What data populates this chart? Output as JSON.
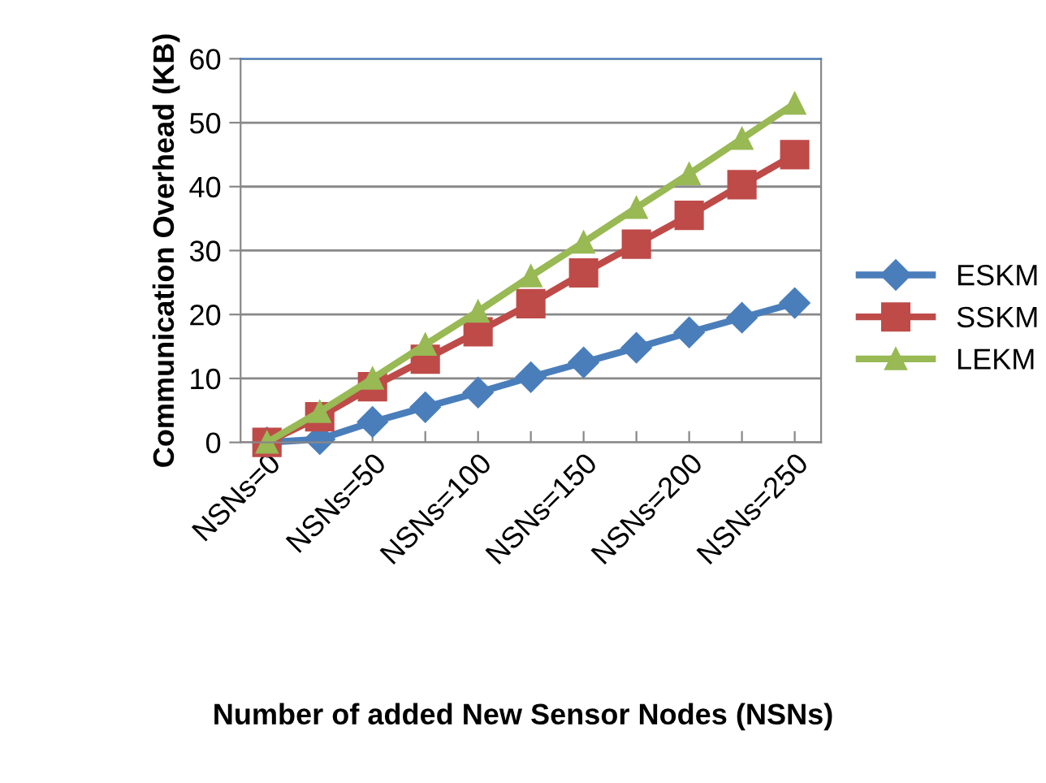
{
  "chart_data": {
    "type": "line",
    "xlabel": "Number of added New Sensor Nodes (NSNs)",
    "ylabel": "Communication Overhead (KB)",
    "categories": [
      "NSNs=0",
      null,
      "NSNs=50",
      null,
      "NSNs=100",
      null,
      "NSNs=150",
      null,
      "NSNs=200",
      null,
      "NSNs=250"
    ],
    "series": [
      {
        "name": "ESKM",
        "color": "#4a7ebb",
        "marker": "diamond",
        "values": [
          0,
          0.5,
          3.2,
          5.5,
          7.8,
          10.2,
          12.5,
          14.8,
          17.2,
          19.5,
          21.8
        ]
      },
      {
        "name": "SSKM",
        "color": "#be4b48",
        "marker": "square",
        "values": [
          0,
          4,
          8.7,
          13,
          17.3,
          21.7,
          26.5,
          31,
          35.5,
          40.3,
          45
        ]
      },
      {
        "name": "LEKM",
        "color": "#98b954",
        "marker": "triangle",
        "values": [
          0,
          4.8,
          10,
          15.3,
          20.5,
          26,
          31.3,
          36.7,
          42,
          47.5,
          53
        ]
      }
    ],
    "ylim": [
      0,
      60
    ],
    "yticks": [
      0,
      10,
      20,
      30,
      40,
      50,
      60
    ],
    "grid": "y",
    "legend": "right",
    "line_style": "solid"
  }
}
